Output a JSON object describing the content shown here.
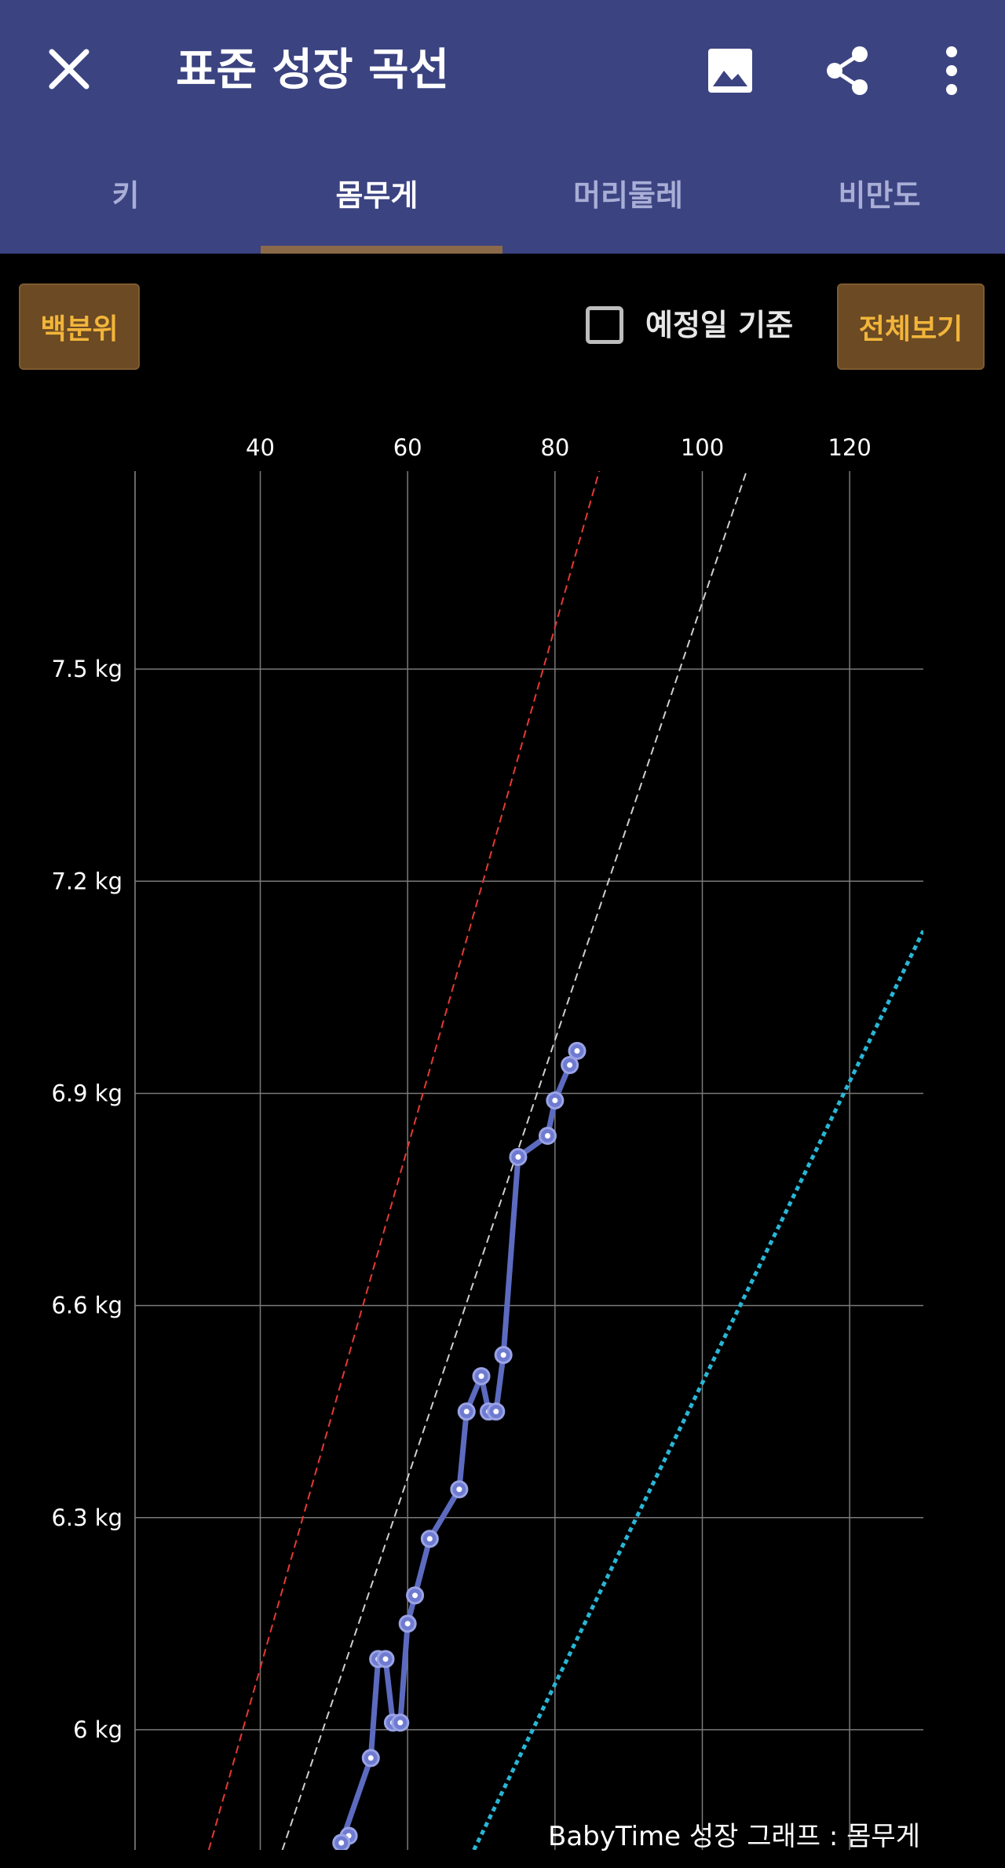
{
  "header": {
    "title": "표준 성장 곡선",
    "background": "#3b4381",
    "close_icon": "close-icon",
    "image_icon": "image-icon",
    "share_icon": "share-icon",
    "more_icon": "more-vert-icon"
  },
  "tabs": [
    {
      "label": "키",
      "active": false
    },
    {
      "label": "몸무게",
      "active": true
    },
    {
      "label": "머리둘레",
      "active": false
    },
    {
      "label": "비만도",
      "active": false
    }
  ],
  "controls": {
    "percentile_button": "백분위",
    "due_date_checkbox": {
      "label": "예정일 기준",
      "checked": false
    },
    "view_all_button": "전체보기"
  },
  "chart_data": {
    "type": "line",
    "x_ticks": [
      40,
      60,
      80,
      100,
      120
    ],
    "y_ticks": [
      6.0,
      6.3,
      6.6,
      6.9,
      7.2,
      7.5
    ],
    "y_tick_labels": [
      "6 kg",
      "6.3 kg",
      "6.6 kg",
      "6.9 kg",
      "7.2 kg",
      "7.5 kg"
    ],
    "xlim": [
      23,
      130
    ],
    "ylim": [
      5.83,
      7.78
    ],
    "grid": true,
    "footer": "BabyTime 성장 그래프 : 몸무게",
    "reference_lines": [
      {
        "color": "#e53935",
        "style": "dashed",
        "points": [
          [
            33.0,
            5.83
          ],
          [
            86.0,
            7.78
          ]
        ]
      },
      {
        "color": "#cfcfcf",
        "style": "dashed",
        "points": [
          [
            43.0,
            5.83
          ],
          [
            106.0,
            7.78
          ]
        ]
      },
      {
        "color": "#29b6d6",
        "style": "dotted",
        "points": [
          [
            69.0,
            5.83
          ],
          [
            130.0,
            7.13
          ]
        ]
      }
    ],
    "series": [
      {
        "color": "#5c6bc0",
        "x": [
          52,
          51,
          55,
          56,
          57,
          58,
          59,
          60,
          61,
          63,
          67,
          68,
          70,
          71,
          72,
          73,
          75,
          79,
          80,
          82,
          83
        ],
        "y": [
          5.85,
          5.84,
          5.96,
          6.1,
          6.1,
          6.01,
          6.01,
          6.15,
          6.19,
          6.27,
          6.34,
          6.45,
          6.5,
          6.45,
          6.45,
          6.53,
          6.81,
          6.84,
          6.89,
          6.94,
          6.96
        ]
      }
    ]
  }
}
